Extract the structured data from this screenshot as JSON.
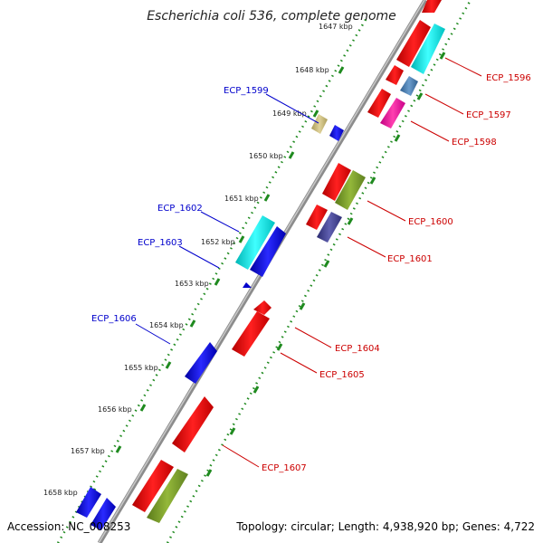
{
  "title": "Escherichia coli 536, complete genome",
  "footer": {
    "accession": "Accession: NC_008253",
    "summary": "Topology: circular; Length: 4,938,920 bp; Genes: 4,722"
  },
  "ticks": [
    "1647 kbp",
    "1648 kbp",
    "1649 kbp",
    "1650 kbp",
    "1651 kbp",
    "1652 kbp",
    "1653 kbp",
    "1654 kbp",
    "1655 kbp",
    "1656 kbp",
    "1657 kbp",
    "1658 kbp"
  ],
  "labels": {
    "ecp1596": "ECP_1596",
    "ecp1597": "ECP_1597",
    "ecp1598": "ECP_1598",
    "ecp1599": "ECP_1599",
    "ecp1600": "ECP_1600",
    "ecp1601": "ECP_1601",
    "ecp1602": "ECP_1602",
    "ecp1603": "ECP_1603",
    "ecp1604": "ECP_1604",
    "ecp1605": "ECP_1605",
    "ecp1606": "ECP_1606",
    "ecp1607": "ECP_1607"
  },
  "colors": {
    "forward_label": "#0000cc",
    "reverse_label": "#cc0000",
    "backbone": "#8c8c8c",
    "ticks": "#1f8a1f"
  }
}
